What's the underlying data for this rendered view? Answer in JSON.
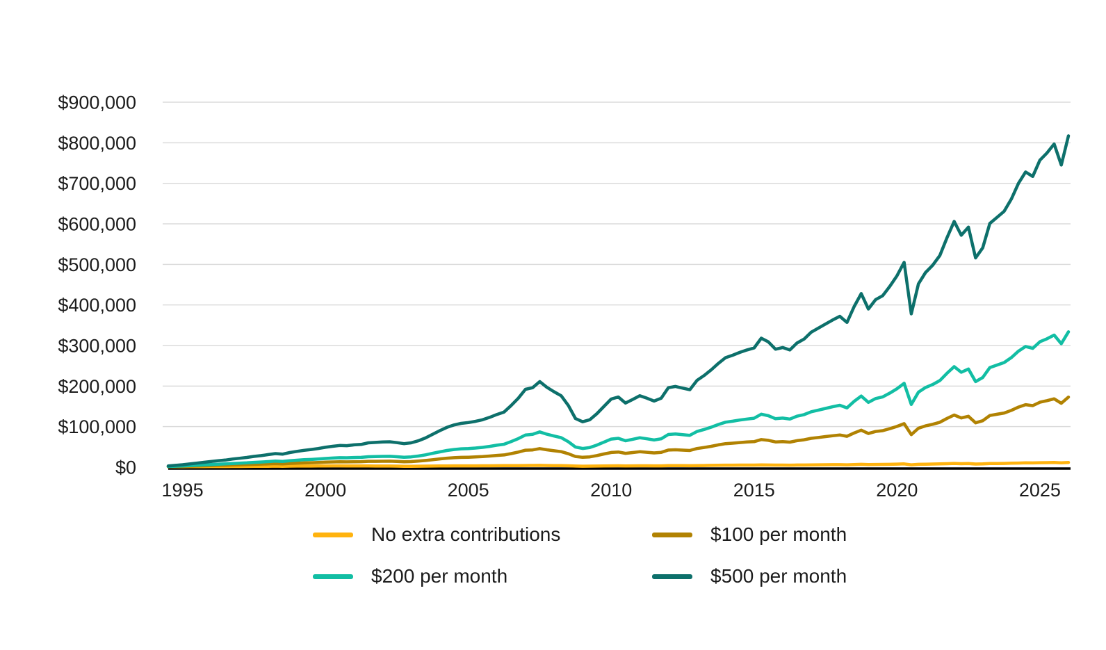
{
  "chart_data": {
    "type": "line",
    "title": "",
    "xlabel": "",
    "ylabel": "",
    "unit": "USD_thousands",
    "x_start": 1994.5,
    "x_step": 0.25,
    "x_end": 2026.0,
    "x_tick_years": [
      1995,
      2000,
      2005,
      2010,
      2015,
      2020,
      2025
    ],
    "x_tick_labels": [
      "1995",
      "2000",
      "2005",
      "2010",
      "2015",
      "2020",
      "2025"
    ],
    "y_tick_values": [
      0,
      100000,
      200000,
      300000,
      400000,
      500000,
      600000,
      700000,
      800000,
      900000
    ],
    "y_tick_labels": [
      "$0",
      "$100,000",
      "$200,000",
      "$300,000",
      "$400,000",
      "$500,000",
      "$600,000",
      "$700,000",
      "$800,000",
      "$900,000"
    ],
    "ylim": [
      0,
      940000
    ],
    "grid": "horizontal-only",
    "grid_color": "#DBDBDB",
    "axis_color": "#000000",
    "text_color": "#1c1c1c",
    "legend_position": "bottom",
    "series": [
      {
        "name": "No extra contributions",
        "color": "#FFB30F",
        "values_k": [
          1,
          1,
          1.1,
          1.2,
          1.3,
          1.4,
          1.5,
          1.6,
          1.6,
          1.7,
          1.8,
          1.9,
          2.1,
          2.2,
          2.3,
          2.5,
          2.3,
          2.5,
          2.7,
          2.8,
          2.8,
          2.9,
          3.1,
          3.2,
          3.2,
          3.1,
          3,
          2.9,
          3,
          2.8,
          2.8,
          2.8,
          2.5,
          2.2,
          2.3,
          2.4,
          2.6,
          2.8,
          3,
          3.1,
          3.2,
          3.3,
          3.3,
          3.3,
          3.4,
          3.5,
          3.6,
          3.7,
          3.8,
          4,
          4.2,
          4.3,
          4.4,
          4.2,
          4,
          3.8,
          3.4,
          2.7,
          2.4,
          2.5,
          2.8,
          3.1,
          3.3,
          3.4,
          3.1,
          3.3,
          3.5,
          3.4,
          3.2,
          3.3,
          3.7,
          3.8,
          3.7,
          3.6,
          4,
          4.2,
          4.4,
          4.7,
          4.9,
          5,
          5.1,
          5.2,
          5.2,
          5.6,
          5.4,
          5.1,
          5.1,
          5,
          5.3,
          5.4,
          5.7,
          5.8,
          6,
          6.1,
          6.2,
          5.9,
          6.5,
          7,
          6.3,
          6.7,
          6.8,
          7.1,
          7.5,
          8,
          5.9,
          7,
          7.4,
          7.7,
          8,
          8.6,
          9.2,
          8.6,
          8.9,
          7.7,
          8,
          8.9,
          9.1,
          9.3,
          9.7,
          10.2,
          10.6,
          10.4,
          10.9,
          11.2,
          11.5,
          10.7,
          11.7
        ]
      },
      {
        "name": "$100 per month",
        "color": "#B18202",
        "values_k": [
          1.4,
          1.7,
          2.1,
          2.6,
          3,
          3.5,
          4,
          4.5,
          4.8,
          5.4,
          5.8,
          6.3,
          7,
          7.5,
          8,
          8.7,
          8.2,
          9.2,
          10,
          10.5,
          10.9,
          11.5,
          12.3,
          12.9,
          13.3,
          13.1,
          13.4,
          13.5,
          14.4,
          14.4,
          14.6,
          14.7,
          14.1,
          13.4,
          13.8,
          14.9,
          16.5,
          18.4,
          20.4,
          22.1,
          23.4,
          24.2,
          24.6,
          25.2,
          26.1,
          27.4,
          28.9,
          30.2,
          33.4,
          37.2,
          41.8,
          42.6,
          45.7,
          42.8,
          40.4,
          38.2,
          33.1,
          26.2,
          24.3,
          25.4,
          28.6,
          32.5,
          36.2,
          37.3,
          34.1,
          36,
          38,
          36.7,
          35.2,
          36.6,
          42.2,
          42.8,
          42,
          41.1,
          46,
          48.6,
          51.5,
          55,
          57.9,
          59.2,
          60.7,
          62,
          63,
          68.1,
          66.1,
          62.3,
          63.1,
          61.8,
          65.4,
          67.5,
          71.2,
          73.2,
          75.4,
          77.5,
          79.4,
          76.1,
          84.4,
          91.2,
          83,
          88,
          90,
          94.9,
          100.4,
          107.4,
          80.3,
          96,
          101.9,
          105.8,
          110.8,
          120.1,
          128.6,
          121.3,
          125.5,
          109.4,
          114.6,
          127.3,
          130.5,
          133.6,
          140,
          148.2,
          154.1,
          151.7,
          160.1,
          164,
          168.6,
          157.6,
          172.8
        ]
      },
      {
        "name": "$200 per month",
        "color": "#12BEA4",
        "values_k": [
          1.8,
          2.4,
          3.1,
          3.9,
          4.8,
          5.6,
          6.5,
          7.4,
          8,
          9,
          9.9,
          10.7,
          11.9,
          12.7,
          13.8,
          14.9,
          14.2,
          15.9,
          17.2,
          18.3,
          19.1,
          20.1,
          21.5,
          22.5,
          23.3,
          23.1,
          23.8,
          24.1,
          25.8,
          26.1,
          26.5,
          26.7,
          25.7,
          24.5,
          25.4,
          27.4,
          30.4,
          34.1,
          37.8,
          41.1,
          43.5,
          45.2,
          46,
          47.2,
          48.8,
          51.3,
          54.2,
          56.6,
          63.1,
          70.4,
          79.3,
          81,
          87,
          81.3,
          76.8,
          72.7,
          62.8,
          49.6,
          46.2,
          48.3,
          54.5,
          61.9,
          69.2,
          71.2,
          65.1,
          68.8,
          72.5,
          70,
          67.1,
          70,
          80.6,
          81.9,
          80.2,
          78.6,
          88,
          92.9,
          98.6,
          105.2,
          110.9,
          113.4,
          116.3,
          118.7,
          120.7,
          130.6,
          126.8,
          119.5,
          121.1,
          118.6,
          125.6,
          129.6,
          136.6,
          140.7,
          144.8,
          148.9,
          152.5,
          146.3,
          162.3,
          175.4,
          159.8,
          169.2,
          173.3,
          182.7,
          193.3,
          206.8,
          154.7,
          185,
          196.4,
          203.8,
          213.6,
          231.6,
          247.9,
          234,
          242.1,
          211,
          221.2,
          245.7,
          251.9,
          258,
          270.2,
          286.1,
          297.6,
          293,
          309.3,
          316.7,
          325.7,
          304.4,
          333.8
        ]
      },
      {
        "name": "$500 per month",
        "color": "#0D706B",
        "values_k": [
          3,
          4.5,
          6,
          8,
          10,
          12,
          14,
          16,
          17.5,
          20,
          22,
          24,
          26.5,
          28.5,
          31,
          33.5,
          32,
          36,
          39,
          41.5,
          43.5,
          46,
          49,
          51.5,
          53.5,
          53,
          55,
          56,
          60,
          61,
          62,
          62.5,
          60.5,
          58,
          60,
          65,
          72,
          81,
          90,
          98,
          104,
          108,
          110,
          113,
          117,
          123,
          130,
          136,
          152,
          170,
          192,
          196,
          211,
          197,
          186,
          176,
          152,
          120,
          112,
          117,
          132,
          150,
          168,
          173,
          158,
          167,
          176,
          170,
          163,
          170,
          196,
          199,
          195,
          191,
          214,
          226,
          240,
          256,
          270,
          276,
          283,
          289,
          294,
          318,
          309,
          291,
          295,
          289,
          306,
          316,
          333,
          343,
          353,
          363,
          372,
          357,
          396,
          428,
          390,
          413,
          423,
          446,
          472,
          505,
          378,
          452,
          480,
          498,
          522,
          566,
          606,
          572,
          592,
          516,
          541,
          601,
          616,
          631,
          661,
          700,
          728,
          717,
          757,
          775,
          797,
          745,
          817
        ]
      }
    ]
  },
  "legend": {
    "items": [
      {
        "label": "No extra contributions"
      },
      {
        "label": "$100 per month"
      },
      {
        "label": "$200 per month"
      },
      {
        "label": "$500 per month"
      }
    ]
  }
}
